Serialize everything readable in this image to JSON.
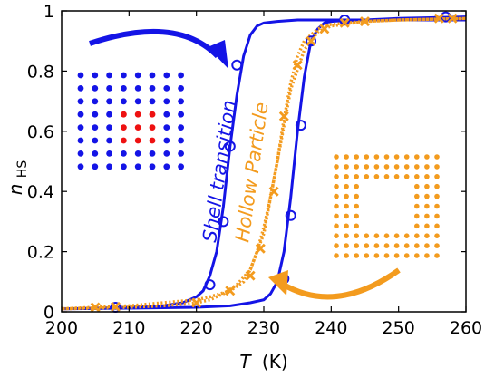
{
  "chart_data": {
    "type": "line",
    "title": "",
    "xlabel_var": "T",
    "xlabel_unit": "(K)",
    "ylabel_var": "n",
    "ylabel_sub": "HS",
    "xlim": [
      200,
      260
    ],
    "ylim": [
      0,
      1
    ],
    "xticks": [
      "200",
      "210",
      "220",
      "230",
      "240",
      "250",
      "260"
    ],
    "yticks": [
      "0",
      "0.2",
      "0.4",
      "0.6",
      "0.8",
      "1"
    ],
    "grid": false,
    "series": [
      {
        "name": "Shell transition",
        "color": "#1414e6",
        "marker": "circle",
        "branches": [
          {
            "x": [
              200,
              205,
              210,
              215,
              218,
              220,
              221,
              222,
              223,
              224,
              225,
              226,
              227,
              228,
              229,
              230,
              232,
              235,
              240,
              250,
              260
            ],
            "y": [
              0.01,
              0.012,
              0.015,
              0.02,
              0.03,
              0.05,
              0.07,
              0.12,
              0.2,
              0.35,
              0.55,
              0.72,
              0.85,
              0.92,
              0.95,
              0.96,
              0.965,
              0.97,
              0.97,
              0.97,
              0.97
            ]
          },
          {
            "x": [
              260,
              250,
              245,
              242,
              240,
              239,
              238,
              237,
              236,
              235,
              234,
              233,
              232,
              231,
              230,
              228,
              225,
              220,
              210,
              200
            ],
            "y": [
              0.98,
              0.975,
              0.97,
              0.968,
              0.965,
              0.96,
              0.94,
              0.9,
              0.78,
              0.6,
              0.38,
              0.2,
              0.1,
              0.06,
              0.04,
              0.03,
              0.02,
              0.015,
              0.012,
              0.01
            ]
          }
        ],
        "markers": [
          {
            "x": 208,
            "y": 0.015
          },
          {
            "x": 222,
            "y": 0.09
          },
          {
            "x": 224,
            "y": 0.3
          },
          {
            "x": 225,
            "y": 0.55
          },
          {
            "x": 226,
            "y": 0.82
          },
          {
            "x": 233,
            "y": 0.11
          },
          {
            "x": 234,
            "y": 0.32
          },
          {
            "x": 235.5,
            "y": 0.62
          },
          {
            "x": 237,
            "y": 0.9
          },
          {
            "x": 242,
            "y": 0.97
          },
          {
            "x": 257,
            "y": 0.98
          }
        ]
      },
      {
        "name": "Hollow Particle",
        "color": "#f39b1e",
        "marker": "x",
        "branches": [
          {
            "x": [
              200,
              210,
              215,
              218,
              220,
              222,
              224,
              226,
              228,
              230,
              232,
              234,
              236,
              238,
              240,
              245,
              250,
              260
            ],
            "y": [
              0.01,
              0.015,
              0.02,
              0.025,
              0.03,
              0.04,
              0.06,
              0.09,
              0.14,
              0.26,
              0.5,
              0.74,
              0.87,
              0.93,
              0.95,
              0.965,
              0.97,
              0.975
            ]
          },
          {
            "x": [
              260,
              250,
              245,
              240,
              238,
              236,
              235,
              234,
              233,
              232,
              231,
              230,
              229,
              228,
              227,
              225,
              222,
              220,
              210,
              200
            ],
            "y": [
              0.975,
              0.97,
              0.965,
              0.955,
              0.94,
              0.9,
              0.85,
              0.76,
              0.64,
              0.5,
              0.38,
              0.28,
              0.2,
              0.14,
              0.1,
              0.07,
              0.05,
              0.04,
              0.02,
              0.01
            ]
          }
        ],
        "markers": [
          {
            "x": 205,
            "y": 0.015
          },
          {
            "x": 208,
            "y": 0.017
          },
          {
            "x": 220,
            "y": 0.03
          },
          {
            "x": 225,
            "y": 0.07
          },
          {
            "x": 228,
            "y": 0.12
          },
          {
            "x": 229.5,
            "y": 0.21
          },
          {
            "x": 231.5,
            "y": 0.4
          },
          {
            "x": 233,
            "y": 0.65
          },
          {
            "x": 235,
            "y": 0.82
          },
          {
            "x": 237,
            "y": 0.9
          },
          {
            "x": 239,
            "y": 0.94
          },
          {
            "x": 242,
            "y": 0.96
          },
          {
            "x": 245,
            "y": 0.965
          },
          {
            "x": 256,
            "y": 0.975
          },
          {
            "x": 258,
            "y": 0.975
          }
        ]
      }
    ]
  },
  "annotations": {
    "shell_label": "Shell transition",
    "hollow_label": "Hollow Particle"
  },
  "insets": {
    "shell_lattice": {
      "rows": 8,
      "cols": 8,
      "color": "#1414e6",
      "core_color": "#ee1111",
      "core_rows": [
        3,
        4,
        5
      ],
      "core_cols": [
        3,
        4,
        5
      ]
    },
    "hollow_lattice": {
      "rows": 11,
      "cols": 11,
      "color": "#f39b1e",
      "hole_rows": [
        3,
        4,
        5,
        6,
        7
      ],
      "hole_cols": [
        3,
        4,
        5,
        6,
        7
      ]
    }
  }
}
